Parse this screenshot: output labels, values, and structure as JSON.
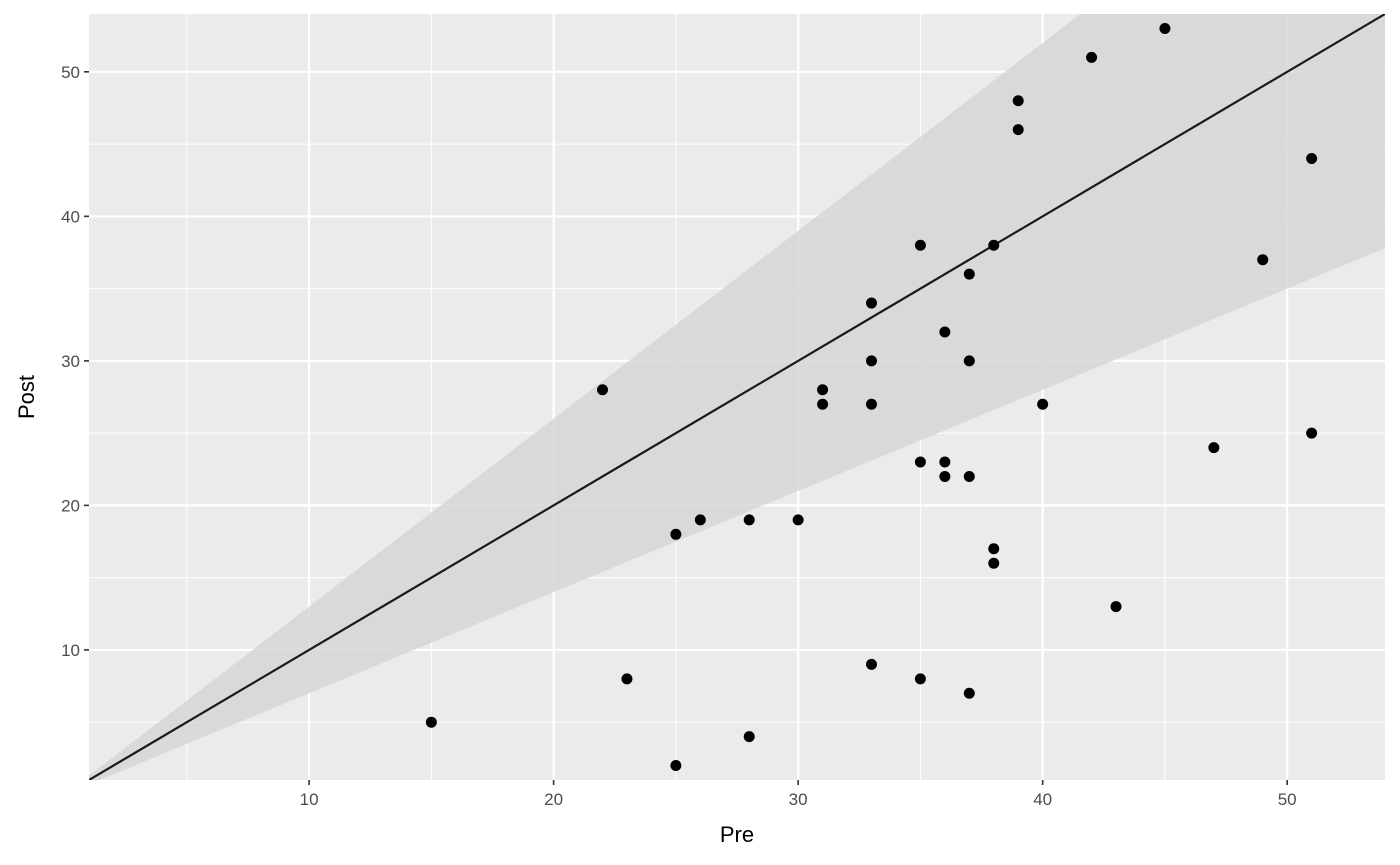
{
  "chart_data": {
    "type": "scatter",
    "title": "",
    "xlabel": "Pre",
    "ylabel": "Post",
    "xlim": [
      1,
      54
    ],
    "ylim": [
      1,
      54
    ],
    "x_ticks": [
      10,
      20,
      30,
      40,
      50
    ],
    "y_ticks": [
      10,
      20,
      30,
      40,
      50
    ],
    "x_minor_ticks": [
      5,
      15,
      25,
      35,
      45
    ],
    "y_minor_ticks": [
      5,
      15,
      25,
      35,
      45
    ],
    "grid": true,
    "reference_line": {
      "slope": 1,
      "intercept": 0
    },
    "band": {
      "lower_slope": 0.7,
      "upper_slope": 1.3
    },
    "colors": {
      "panel": "#EBEBEB",
      "grid": "#FFFFFF",
      "band": "#D6D6D6",
      "line": "#1A1A1A",
      "points": "#000000"
    },
    "points": [
      {
        "x": 15,
        "y": 5
      },
      {
        "x": 22,
        "y": 28
      },
      {
        "x": 23,
        "y": 8
      },
      {
        "x": 25,
        "y": 18
      },
      {
        "x": 25,
        "y": 2
      },
      {
        "x": 26,
        "y": 19
      },
      {
        "x": 28,
        "y": 19
      },
      {
        "x": 28,
        "y": 4
      },
      {
        "x": 30,
        "y": 19
      },
      {
        "x": 31,
        "y": 28
      },
      {
        "x": 31,
        "y": 27
      },
      {
        "x": 33,
        "y": 34
      },
      {
        "x": 33,
        "y": 30
      },
      {
        "x": 33,
        "y": 27
      },
      {
        "x": 33,
        "y": 9
      },
      {
        "x": 35,
        "y": 38
      },
      {
        "x": 35,
        "y": 23
      },
      {
        "x": 35,
        "y": 8
      },
      {
        "x": 36,
        "y": 32
      },
      {
        "x": 36,
        "y": 23
      },
      {
        "x": 36,
        "y": 22
      },
      {
        "x": 37,
        "y": 36
      },
      {
        "x": 37,
        "y": 30
      },
      {
        "x": 37,
        "y": 22
      },
      {
        "x": 37,
        "y": 7
      },
      {
        "x": 38,
        "y": 38
      },
      {
        "x": 38,
        "y": 17
      },
      {
        "x": 38,
        "y": 16
      },
      {
        "x": 39,
        "y": 48
      },
      {
        "x": 39,
        "y": 46
      },
      {
        "x": 40,
        "y": 27
      },
      {
        "x": 42,
        "y": 51
      },
      {
        "x": 43,
        "y": 13
      },
      {
        "x": 45,
        "y": 53
      },
      {
        "x": 47,
        "y": 24
      },
      {
        "x": 49,
        "y": 37
      },
      {
        "x": 51,
        "y": 44
      },
      {
        "x": 51,
        "y": 25
      }
    ]
  }
}
